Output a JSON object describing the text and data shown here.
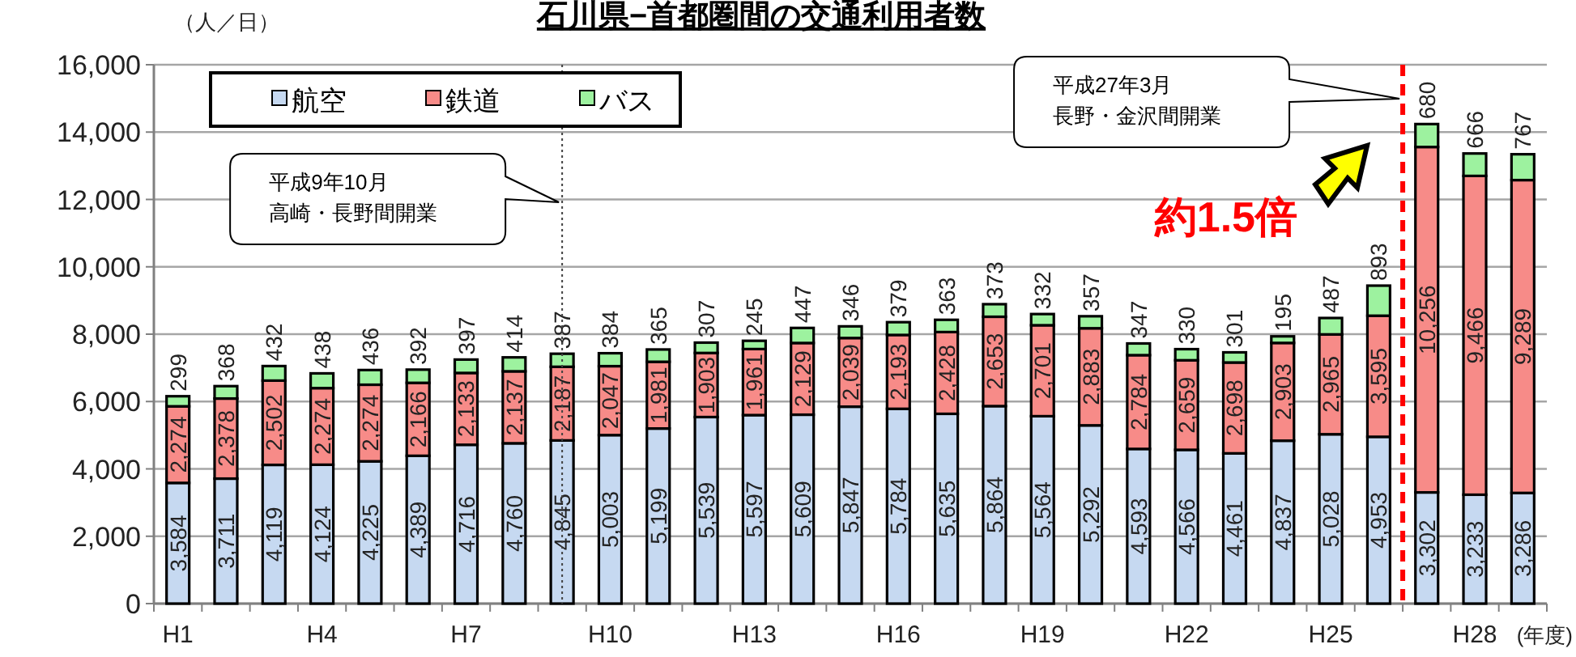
{
  "chart_data": {
    "type": "bar",
    "stacked": true,
    "title": "石川県−首都圏間の交通利用者数",
    "ylabel": "（人／日）",
    "xlabel": "(年度)",
    "categories": [
      "H1",
      null,
      null,
      "H4",
      null,
      null,
      "H7",
      null,
      null,
      "H10",
      null,
      null,
      "H13",
      null,
      null,
      "H16",
      null,
      null,
      "H19",
      null,
      null,
      "H22",
      null,
      null,
      "H25",
      null,
      null,
      "H28",
      null
    ],
    "ylim": [
      0,
      16000
    ],
    "yticks": [
      {
        "value": 0,
        "label": "0"
      },
      {
        "value": 2000,
        "label": "2,000"
      },
      {
        "value": 4000,
        "label": "4,000"
      },
      {
        "value": 6000,
        "label": "6,000"
      },
      {
        "value": 8000,
        "label": "8,000"
      },
      {
        "value": 10000,
        "label": "10,000"
      },
      {
        "value": 12000,
        "label": "12,000"
      },
      {
        "value": 14000,
        "label": "14,000"
      },
      {
        "value": 16000,
        "label": "16,000"
      }
    ],
    "grid": "y",
    "legend": "top left",
    "series": [
      {
        "name": "航空",
        "color": "#c6d9f1",
        "values": [
          3584,
          3711,
          4119,
          4124,
          4225,
          4389,
          4716,
          4760,
          4845,
          5003,
          5199,
          5539,
          5597,
          5609,
          5847,
          5784,
          5635,
          5864,
          5564,
          5292,
          4593,
          4566,
          4461,
          4837,
          5028,
          4953,
          3302,
          3233,
          3286
        ],
        "value_labels": [
          "3,584",
          "3,711",
          "4,119",
          "4,124",
          "4,225",
          "4,389",
          "4,716",
          "4,760",
          "4,845",
          "5,003",
          "5,199",
          "5,539",
          "5,597",
          "5,609",
          "5,847",
          "5,784",
          "5,635",
          "5,864",
          "5,564",
          "5,292",
          "4,593",
          "4,566",
          "4,461",
          "4,837",
          "5,028",
          "4,953",
          "3,302",
          "3,233",
          "3,286"
        ]
      },
      {
        "name": "鉄道",
        "color": "#f78b88",
        "values": [
          2274,
          2378,
          2502,
          2274,
          2274,
          2166,
          2133,
          2137,
          2187,
          2047,
          1981,
          1903,
          1961,
          2129,
          2039,
          2193,
          2428,
          2653,
          2701,
          2883,
          2784,
          2659,
          2698,
          2903,
          2965,
          3595,
          10256,
          9466,
          9289
        ],
        "value_labels": [
          "2,274",
          "2,378",
          "2,502",
          "2,274",
          "2,274",
          "2,166",
          "2,133",
          "2,137",
          "2,187",
          "2,047",
          "1,981",
          "1,903",
          "1,961",
          "2,129",
          "2,039",
          "2,193",
          "2,428",
          "2,653",
          "2,701",
          "2,883",
          "2,784",
          "2,659",
          "2,698",
          "2,903",
          "2,965",
          "3,595",
          "10,256",
          "9,466",
          "9,289"
        ]
      },
      {
        "name": "バス",
        "color": "#9df29f",
        "values": [
          299,
          368,
          432,
          438,
          436,
          392,
          397,
          414,
          387,
          384,
          365,
          307,
          245,
          447,
          346,
          379,
          363,
          373,
          332,
          357,
          347,
          330,
          301,
          195,
          487,
          893,
          680,
          666,
          767
        ],
        "value_labels": [
          "299",
          "368",
          "432",
          "438",
          "436",
          "392",
          "397",
          "414",
          "387",
          "384",
          "365",
          "307",
          "245",
          "447",
          "346",
          "379",
          "363",
          "373",
          "332",
          "357",
          "347",
          "330",
          "301",
          "195",
          "487",
          "893",
          "680",
          "666",
          "767"
        ]
      }
    ],
    "annotations": [
      "平成9年10月高崎・長野間開業",
      "平成27年3月長野・金沢間開業",
      "約1.5倍"
    ]
  }
}
